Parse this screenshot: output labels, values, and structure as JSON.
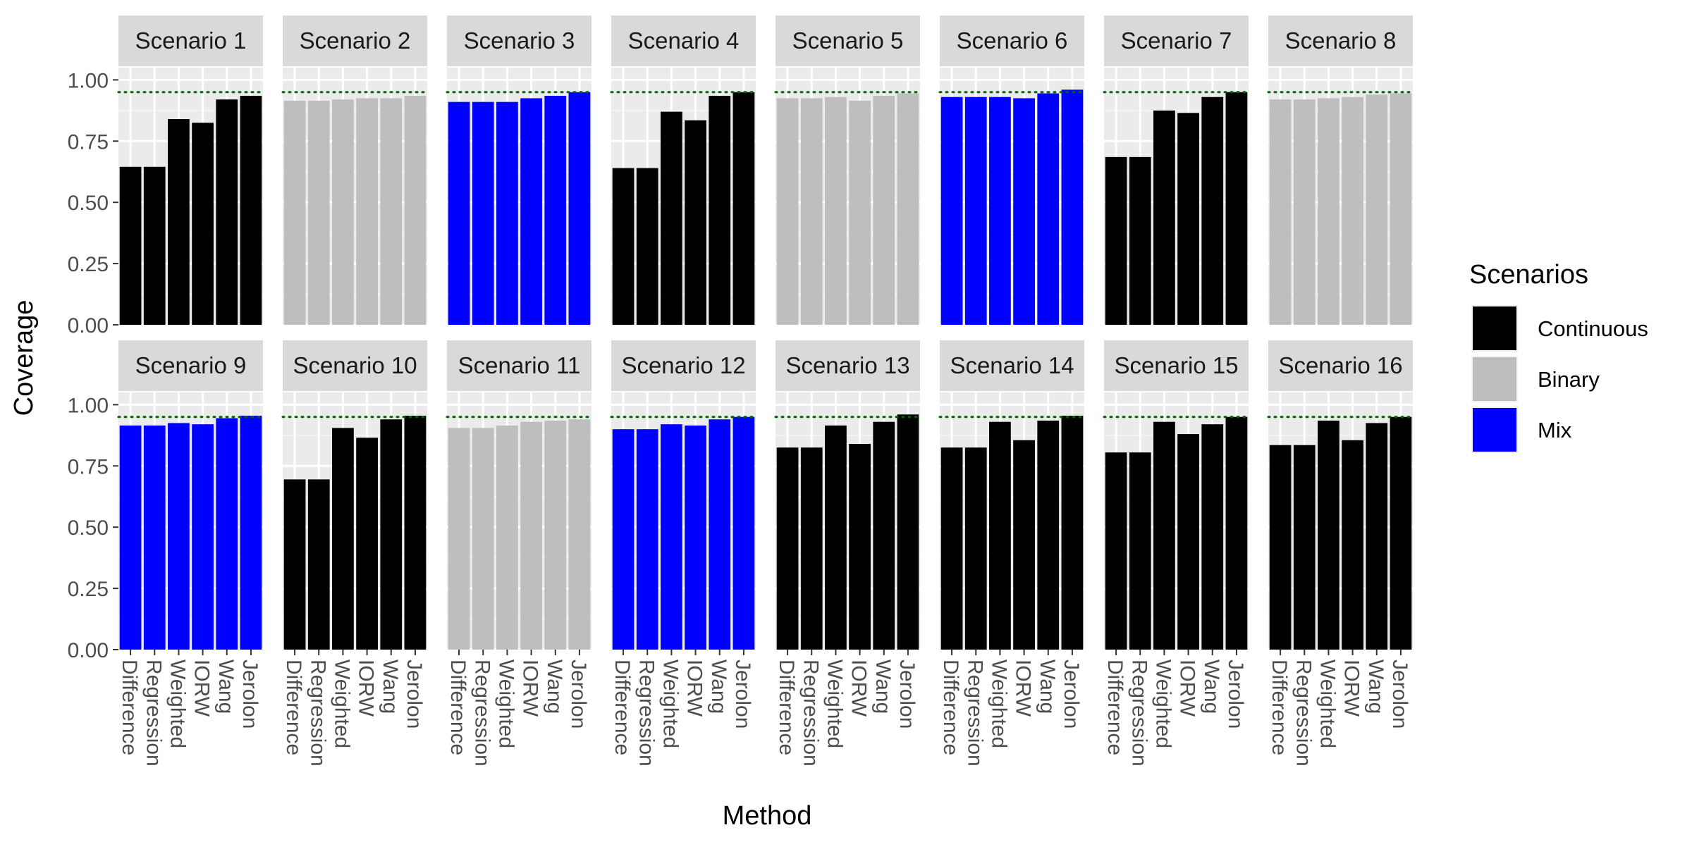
{
  "chart_data": {
    "type": "bar",
    "faceted": true,
    "ylabel": "Coverage",
    "xlabel": "Method",
    "ylim": [
      0,
      1.05
    ],
    "yticks": [
      0.0,
      0.25,
      0.5,
      0.75,
      1.0
    ],
    "ytick_labels": [
      "0.00",
      "0.25",
      "0.50",
      "0.75",
      "1.00"
    ],
    "reference_line": {
      "value": 0.95,
      "style": "dotted",
      "color": "#006400"
    },
    "categories": [
      "Difference",
      "Regression",
      "Weighted",
      "IORW",
      "Wang",
      "Jerolon"
    ],
    "legend": {
      "title": "Scenarios",
      "placement": "right",
      "items": [
        {
          "label": "Continuous",
          "color": "#000000"
        },
        {
          "label": "Binary",
          "color": "#BEBEBE"
        },
        {
          "label": "Mix",
          "color": "#0000FF"
        }
      ]
    },
    "panels": [
      {
        "title": "Scenario 1",
        "group": "Continuous",
        "values": [
          0.645,
          0.645,
          0.84,
          0.825,
          0.92,
          0.935
        ]
      },
      {
        "title": "Scenario 2",
        "group": "Binary",
        "values": [
          0.915,
          0.915,
          0.92,
          0.925,
          0.925,
          0.935
        ]
      },
      {
        "title": "Scenario 3",
        "group": "Mix",
        "values": [
          0.91,
          0.91,
          0.91,
          0.925,
          0.935,
          0.95
        ]
      },
      {
        "title": "Scenario 4",
        "group": "Continuous",
        "values": [
          0.64,
          0.64,
          0.87,
          0.835,
          0.935,
          0.95
        ]
      },
      {
        "title": "Scenario 5",
        "group": "Binary",
        "values": [
          0.925,
          0.925,
          0.93,
          0.915,
          0.935,
          0.945
        ]
      },
      {
        "title": "Scenario 6",
        "group": "Mix",
        "values": [
          0.93,
          0.93,
          0.93,
          0.925,
          0.945,
          0.96
        ]
      },
      {
        "title": "Scenario 7",
        "group": "Continuous",
        "values": [
          0.685,
          0.685,
          0.875,
          0.865,
          0.93,
          0.95
        ]
      },
      {
        "title": "Scenario 8",
        "group": "Binary",
        "values": [
          0.92,
          0.92,
          0.925,
          0.93,
          0.94,
          0.945
        ]
      },
      {
        "title": "Scenario 9",
        "group": "Mix",
        "values": [
          0.915,
          0.915,
          0.925,
          0.92,
          0.945,
          0.955
        ]
      },
      {
        "title": "Scenario 10",
        "group": "Continuous",
        "values": [
          0.695,
          0.695,
          0.905,
          0.865,
          0.94,
          0.955
        ]
      },
      {
        "title": "Scenario 11",
        "group": "Binary",
        "values": [
          0.905,
          0.905,
          0.915,
          0.93,
          0.935,
          0.94
        ]
      },
      {
        "title": "Scenario 12",
        "group": "Mix",
        "values": [
          0.9,
          0.9,
          0.92,
          0.915,
          0.94,
          0.95
        ]
      },
      {
        "title": "Scenario 13",
        "group": "Continuous",
        "values": [
          0.825,
          0.825,
          0.915,
          0.84,
          0.93,
          0.96
        ]
      },
      {
        "title": "Scenario 14",
        "group": "Continuous",
        "values": [
          0.825,
          0.825,
          0.93,
          0.855,
          0.935,
          0.955
        ]
      },
      {
        "title": "Scenario 15",
        "group": "Continuous",
        "values": [
          0.805,
          0.805,
          0.93,
          0.88,
          0.92,
          0.95
        ]
      },
      {
        "title": "Scenario 16",
        "group": "Continuous",
        "values": [
          0.835,
          0.835,
          0.935,
          0.855,
          0.925,
          0.95
        ]
      }
    ]
  }
}
